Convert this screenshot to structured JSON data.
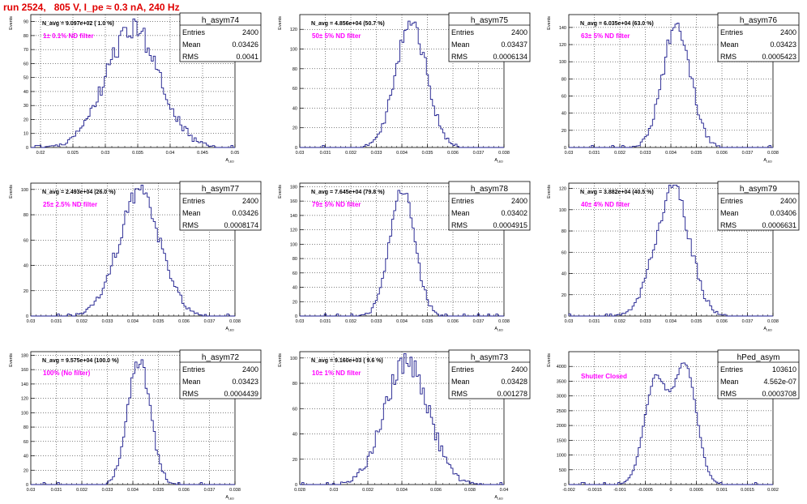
{
  "page_title": "run 2524,   805 V, I_pe ≈ 0.3 nA, 240 Hz",
  "colors": {
    "histogram": "#1a1a8c",
    "annotation": "#ff00ff",
    "title": "#e00000",
    "grid": "#000000"
  },
  "stats_labels": {
    "entries": "Entries",
    "mean": "Mean",
    "rms": "RMS"
  },
  "chart_data": [
    {
      "type": "bar",
      "name": "h_asym74",
      "title": "h_asym74",
      "entries": "2400",
      "mean": "0.03426",
      "rms": "0.0041",
      "navg_label": "N_avg = 9.097e+02 ( 1.0 %)",
      "annotation": "1± 0.1% ND filter",
      "ylabel": "Events",
      "xlabel": "A",
      "xlabel_sub": "LED",
      "xlim": [
        0.0185,
        0.05
      ],
      "ylim": [
        0,
        95
      ],
      "xticks": [
        0.02,
        0.025,
        0.03,
        0.035,
        0.04,
        0.045,
        0.05
      ],
      "xtick_labels": [
        "0.02",
        "0.025",
        "0.03",
        "0.035",
        "0.04",
        "0.045",
        "0.05"
      ],
      "yticks": [
        0,
        10,
        20,
        30,
        40,
        50,
        60,
        70,
        80,
        90
      ],
      "ytick_labels": [
        "0",
        "10",
        "20",
        "30",
        "40",
        "50",
        "60",
        "70",
        "80",
        "90"
      ],
      "grid": true,
      "mu": 0.03426,
      "sigma": 0.0041,
      "peak": 85
    },
    {
      "type": "bar",
      "name": "h_asym75",
      "title": "h_asym75",
      "entries": "2400",
      "mean": "0.03437",
      "rms": "0.0006134",
      "navg_label": "N_avg = 4.856e+04 (50.7 %)",
      "annotation": "50± 5% ND filter",
      "ylabel": "Events",
      "xlabel": "A",
      "xlabel_sub": "LED",
      "xlim": [
        0.03,
        0.038
      ],
      "ylim": [
        0,
        135
      ],
      "xticks": [
        0.03,
        0.031,
        0.032,
        0.033,
        0.034,
        0.035,
        0.036,
        0.037,
        0.038
      ],
      "xtick_labels": [
        "0.03",
        "0.031",
        "0.032",
        "0.033",
        "0.034",
        "0.035",
        "0.036",
        "0.037",
        "0.038"
      ],
      "yticks": [
        0,
        20,
        40,
        60,
        80,
        100,
        120
      ],
      "ytick_labels": [
        "0",
        "20",
        "40",
        "60",
        "80",
        "100",
        "120"
      ],
      "grid": true,
      "mu": 0.03437,
      "sigma": 0.0006134,
      "peak": 125
    },
    {
      "type": "bar",
      "name": "h_asym76",
      "title": "h_asym76",
      "entries": "2400",
      "mean": "0.03423",
      "rms": "0.0005423",
      "navg_label": "N_avg = 6.035e+04 (63.0 %)",
      "annotation": "63± 5% ND filter",
      "ylabel": "Events",
      "xlabel": "A",
      "xlabel_sub": "LED",
      "xlim": [
        0.03,
        0.038
      ],
      "ylim": [
        0,
        155
      ],
      "xticks": [
        0.03,
        0.031,
        0.032,
        0.033,
        0.034,
        0.035,
        0.036,
        0.037,
        0.038
      ],
      "xtick_labels": [
        "0.03",
        "0.031",
        "0.032",
        "0.033",
        "0.034",
        "0.035",
        "0.036",
        "0.037",
        "0.038"
      ],
      "yticks": [
        0,
        20,
        40,
        60,
        80,
        100,
        120,
        140
      ],
      "ytick_labels": [
        "0",
        "20",
        "40",
        "60",
        "80",
        "100",
        "120",
        "140"
      ],
      "grid": true,
      "mu": 0.03423,
      "sigma": 0.0005423,
      "peak": 145
    },
    {
      "type": "bar",
      "name": "h_asym77",
      "title": "h_asym77",
      "entries": "2400",
      "mean": "0.03426",
      "rms": "0.0008174",
      "navg_label": "N_avg = 2.493e+04 (26.0 %)",
      "annotation": "25± 2.5% ND filter",
      "ylabel": "Events",
      "xlabel": "A",
      "xlabel_sub": "LED",
      "xlim": [
        0.03,
        0.038
      ],
      "ylim": [
        0,
        105
      ],
      "xticks": [
        0.03,
        0.031,
        0.032,
        0.033,
        0.034,
        0.035,
        0.036,
        0.037,
        0.038
      ],
      "xtick_labels": [
        "0.03",
        "0.031",
        "0.032",
        "0.033",
        "0.034",
        "0.035",
        "0.036",
        "0.037",
        "0.038"
      ],
      "yticks": [
        0,
        20,
        40,
        60,
        80,
        100
      ],
      "ytick_labels": [
        "0",
        "20",
        "40",
        "60",
        "80",
        "100"
      ],
      "grid": true,
      "mu": 0.03426,
      "sigma": 0.0008174,
      "peak": 98
    },
    {
      "type": "bar",
      "name": "h_asym78",
      "title": "h_asym78",
      "entries": "2400",
      "mean": "0.03402",
      "rms": "0.0004915",
      "navg_label": "N_avg = 7.645e+04 (79.8 %)",
      "annotation": "79± 5% ND filter",
      "ylabel": "Events",
      "xlabel": "A",
      "xlabel_sub": "LED",
      "xlim": [
        0.03,
        0.038
      ],
      "ylim": [
        0,
        185
      ],
      "xticks": [
        0.03,
        0.031,
        0.032,
        0.033,
        0.034,
        0.035,
        0.036,
        0.037,
        0.038
      ],
      "xtick_labels": [
        "0.03",
        "0.031",
        "0.032",
        "0.033",
        "0.034",
        "0.035",
        "0.036",
        "0.037",
        "0.038"
      ],
      "yticks": [
        0,
        20,
        40,
        60,
        80,
        100,
        120,
        140,
        160,
        180
      ],
      "ytick_labels": [
        "0",
        "20",
        "40",
        "60",
        "80",
        "100",
        "120",
        "140",
        "160",
        "180"
      ],
      "grid": true,
      "mu": 0.03402,
      "sigma": 0.0004915,
      "peak": 172
    },
    {
      "type": "bar",
      "name": "h_asym79",
      "title": "h_asym79",
      "entries": "2400",
      "mean": "0.03406",
      "rms": "0.0006631",
      "navg_label": "N_avg = 3.882e+04 (40.5 %)",
      "annotation": "40± 4% ND filter",
      "ylabel": "Events",
      "xlabel": "A",
      "xlabel_sub": "LED",
      "xlim": [
        0.03,
        0.038
      ],
      "ylim": [
        0,
        125
      ],
      "xticks": [
        0.03,
        0.031,
        0.032,
        0.033,
        0.034,
        0.035,
        0.036,
        0.037,
        0.038
      ],
      "xtick_labels": [
        "0.03",
        "0.031",
        "0.032",
        "0.033",
        "0.034",
        "0.035",
        "0.036",
        "0.037",
        "0.038"
      ],
      "yticks": [
        0,
        20,
        40,
        60,
        80,
        100,
        120
      ],
      "ytick_labels": [
        "0",
        "20",
        "40",
        "60",
        "80",
        "100",
        "120"
      ],
      "grid": true,
      "mu": 0.03406,
      "sigma": 0.0006631,
      "peak": 120
    },
    {
      "type": "bar",
      "name": "h_asym72",
      "title": "h_asym72",
      "entries": "2400",
      "mean": "0.03423",
      "rms": "0.0004439",
      "navg_label": "N_avg = 9.575e+04 (100.0 %)",
      "annotation": "100% (No filter)",
      "ylabel": "Events",
      "xlabel": "A",
      "xlabel_sub": "LED",
      "xlim": [
        0.03,
        0.038
      ],
      "ylim": [
        0,
        185
      ],
      "xticks": [
        0.03,
        0.031,
        0.032,
        0.033,
        0.034,
        0.035,
        0.036,
        0.037,
        0.038
      ],
      "xtick_labels": [
        "0.03",
        "0.031",
        "0.032",
        "0.033",
        "0.034",
        "0.035",
        "0.036",
        "0.037",
        "0.038"
      ],
      "yticks": [
        0,
        20,
        40,
        60,
        80,
        100,
        120,
        140,
        160,
        180
      ],
      "ytick_labels": [
        "0",
        "20",
        "40",
        "60",
        "80",
        "100",
        "120",
        "140",
        "160",
        "180"
      ],
      "grid": true,
      "mu": 0.03423,
      "sigma": 0.0004439,
      "peak": 172
    },
    {
      "type": "bar",
      "name": "h_asym73",
      "title": "h_asym73",
      "entries": "2400",
      "mean": "0.03428",
      "rms": "0.001278",
      "navg_label": "N_avg = 9.160e+03 ( 9.6 %)",
      "annotation": "10± 1% ND filter",
      "ylabel": "Events",
      "xlabel": "A",
      "xlabel_sub": "LED",
      "xlim": [
        0.028,
        0.04
      ],
      "ylim": [
        0,
        105
      ],
      "xticks": [
        0.028,
        0.03,
        0.032,
        0.034,
        0.036,
        0.038,
        0.04
      ],
      "xtick_labels": [
        "0.028",
        "0.03",
        "0.032",
        "0.034",
        "0.036",
        "0.038",
        "0.04"
      ],
      "yticks": [
        0,
        20,
        40,
        60,
        80,
        100
      ],
      "ytick_labels": [
        "0",
        "20",
        "40",
        "60",
        "80",
        "100"
      ],
      "grid": true,
      "mu": 0.03428,
      "sigma": 0.001278,
      "peak": 98
    },
    {
      "type": "bar",
      "name": "hPed_asym",
      "title": "hPed_asym",
      "entries": "103610",
      "mean": "4.562e-07",
      "rms": "0.0003708",
      "navg_label": "",
      "annotation": "Shutter Closed",
      "ylabel": "Events",
      "xlabel": "",
      "xlabel_sub": "",
      "xlim": [
        -0.002,
        0.002
      ],
      "ylim": [
        0,
        4500
      ],
      "xticks": [
        -0.002,
        -0.0015,
        -0.001,
        -0.0005,
        0,
        0.0005,
        0.001,
        0.0015,
        0.002
      ],
      "xtick_labels": [
        "-0.002",
        "-0.0015",
        "-0.001",
        "-0.0005",
        "0",
        "0.0005",
        "0.001",
        "0.0015",
        "0.002"
      ],
      "yticks": [
        0,
        500,
        1000,
        1500,
        2000,
        2500,
        3000,
        3500,
        4000
      ],
      "ytick_labels": [
        "0",
        "500",
        "1000",
        "1500",
        "2000",
        "2500",
        "3000",
        "3500",
        "4000"
      ],
      "grid": true,
      "bimodal": {
        "mu1": -0.0003,
        "mu2": 0.00028,
        "sigma": 0.00022,
        "peak1": 3550,
        "peak2": 4000
      }
    }
  ]
}
